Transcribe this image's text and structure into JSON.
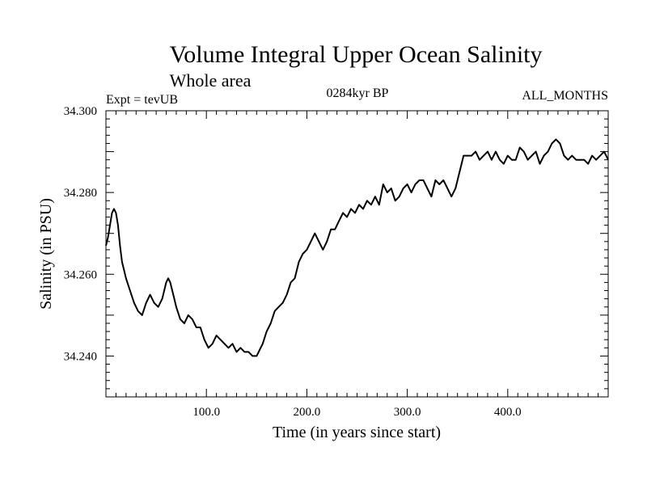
{
  "chart_data": {
    "type": "line",
    "title": "Volume Integral Upper Ocean Salinity",
    "subtitle": "Whole area",
    "left_label": "Expt = tevUB",
    "center_label": "0284kyr BP",
    "right_label": "ALL_MONTHS",
    "xlabel": "Time (in years since start)",
    "ylabel": "Salinity (in PSU)",
    "xlim": [
      0,
      500
    ],
    "ylim": [
      34.23,
      34.3
    ],
    "x_ticks": [
      100,
      200,
      300,
      400
    ],
    "x_tick_labels": [
      "100.0",
      "200.0",
      "300.0",
      "400.0"
    ],
    "y_ticks": [
      34.24,
      34.26,
      34.28,
      34.3
    ],
    "y_tick_labels": [
      "34.240",
      "34.260",
      "34.280",
      "34.300"
    ],
    "grid": false,
    "series": [
      {
        "color": "#000000",
        "x": [
          0,
          2,
          4,
          6,
          8,
          10,
          12,
          14,
          16,
          18,
          20,
          24,
          28,
          32,
          36,
          40,
          44,
          48,
          52,
          56,
          60,
          62,
          64,
          66,
          68,
          70,
          74,
          78,
          82,
          86,
          90,
          94,
          98,
          102,
          106,
          110,
          114,
          118,
          122,
          126,
          130,
          134,
          138,
          142,
          146,
          150,
          152,
          154,
          156,
          160,
          164,
          168,
          172,
          176,
          180,
          184,
          188,
          192,
          196,
          200,
          204,
          208,
          212,
          216,
          220,
          224,
          228,
          232,
          236,
          240,
          244,
          248,
          252,
          256,
          260,
          264,
          268,
          272,
          276,
          280,
          284,
          288,
          292,
          296,
          300,
          304,
          308,
          312,
          316,
          320,
          324,
          328,
          332,
          336,
          340,
          344,
          348,
          352,
          356,
          360,
          364,
          368,
          372,
          376,
          380,
          384,
          388,
          392,
          396,
          400,
          404,
          408,
          412,
          416,
          420,
          424,
          428,
          432,
          436,
          440,
          444,
          448,
          452,
          456,
          460,
          464,
          468,
          472,
          476,
          480,
          484,
          488,
          492,
          496,
          500
        ],
        "y": [
          34.267,
          34.269,
          34.272,
          34.275,
          34.276,
          34.275,
          34.272,
          34.267,
          34.263,
          34.261,
          34.259,
          34.256,
          34.253,
          34.251,
          34.25,
          34.253,
          34.255,
          34.253,
          34.252,
          34.254,
          34.258,
          34.259,
          34.258,
          34.256,
          34.254,
          34.252,
          34.249,
          34.248,
          34.25,
          34.249,
          34.247,
          34.247,
          34.244,
          34.242,
          34.243,
          34.245,
          34.244,
          34.243,
          34.242,
          34.243,
          34.241,
          34.242,
          34.241,
          34.241,
          34.24,
          34.24,
          34.241,
          34.242,
          34.243,
          34.246,
          34.248,
          34.251,
          34.252,
          34.253,
          34.255,
          34.258,
          34.259,
          34.263,
          34.265,
          34.266,
          34.268,
          34.27,
          34.268,
          34.266,
          34.268,
          34.271,
          34.271,
          34.273,
          34.275,
          34.274,
          34.276,
          34.275,
          34.277,
          34.276,
          34.278,
          34.277,
          34.279,
          34.277,
          34.282,
          34.28,
          34.281,
          34.278,
          34.279,
          34.281,
          34.282,
          34.28,
          34.282,
          34.283,
          34.283,
          34.281,
          34.279,
          34.283,
          34.282,
          34.283,
          34.281,
          34.279,
          34.281,
          34.285,
          34.289,
          34.289,
          34.289,
          34.29,
          34.288,
          34.289,
          34.29,
          34.288,
          34.29,
          34.288,
          34.287,
          34.289,
          34.288,
          34.288,
          34.291,
          34.29,
          34.288,
          34.289,
          34.29,
          34.287,
          34.289,
          34.29,
          34.292,
          34.293,
          34.292,
          34.289,
          34.288,
          34.289,
          34.288,
          34.288,
          34.288,
          34.287,
          34.289,
          34.288,
          34.289,
          34.29,
          34.288
        ]
      }
    ]
  }
}
